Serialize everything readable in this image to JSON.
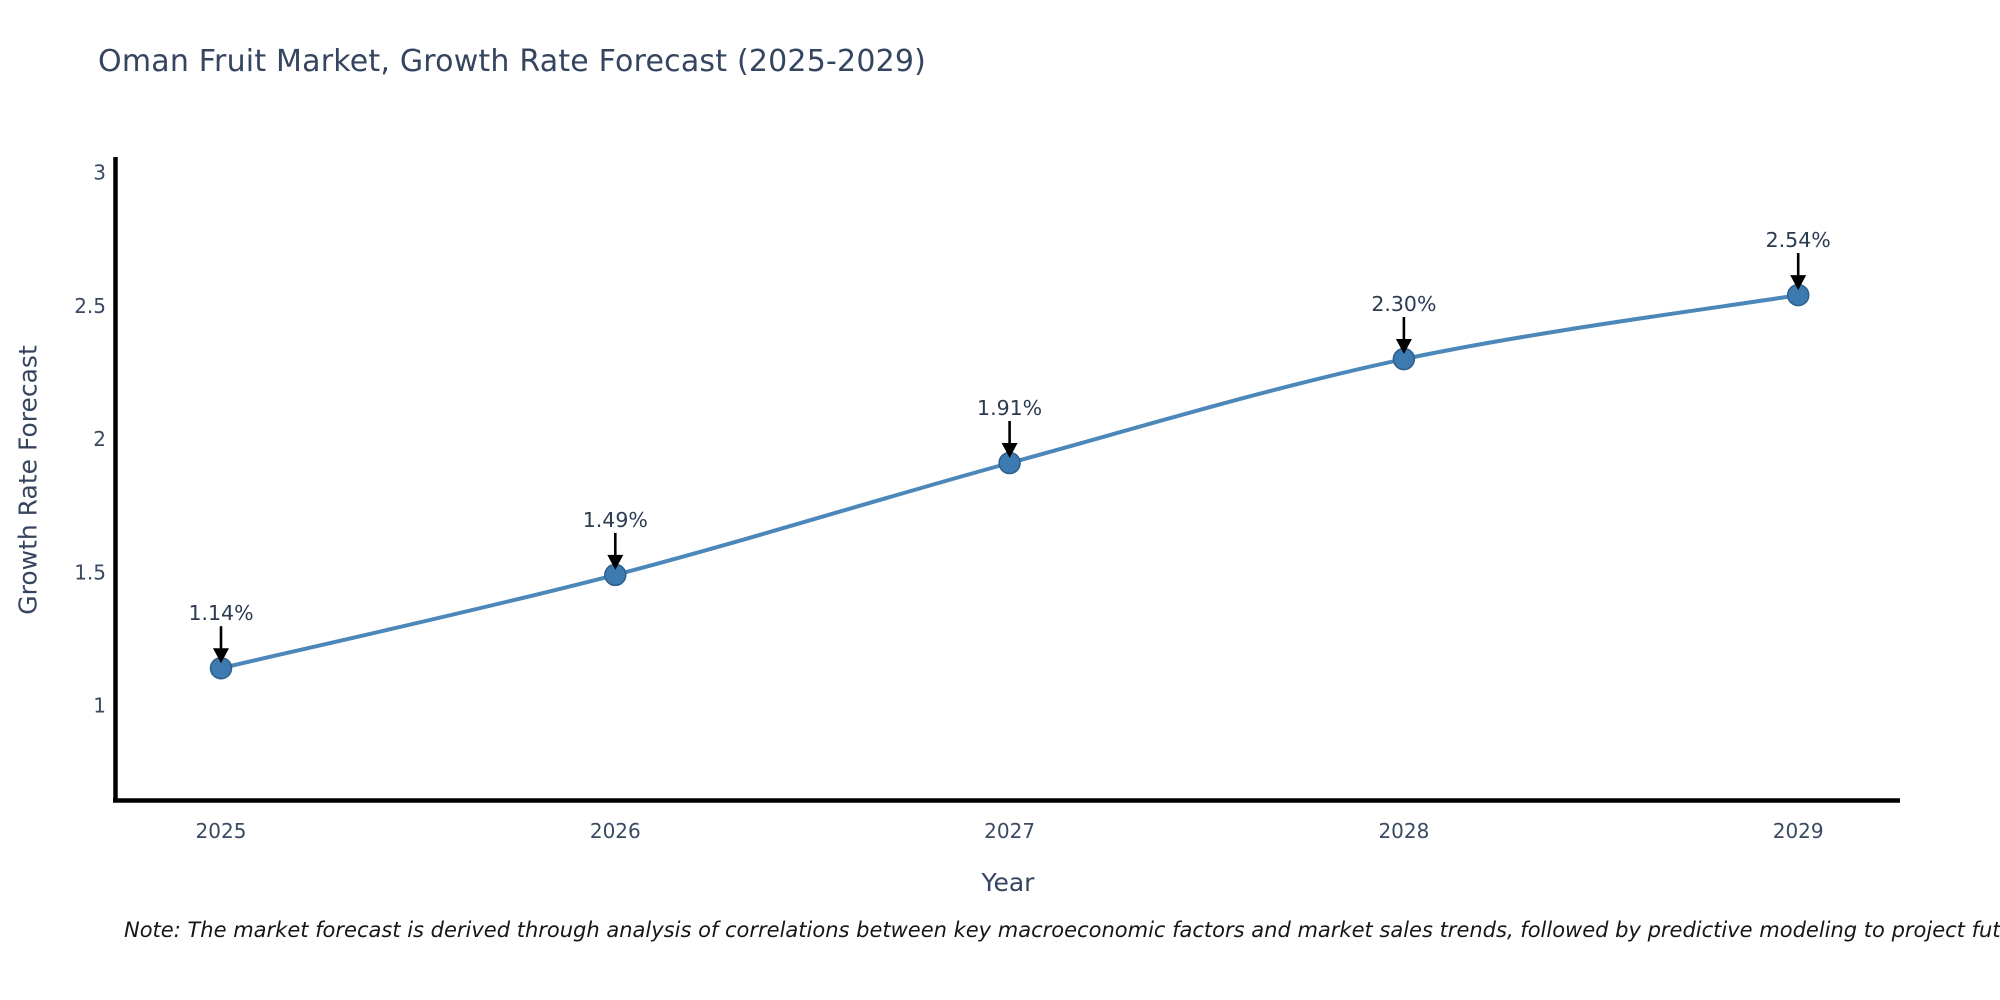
{
  "page": {
    "title_label": "Oman Fruit Market, Growth Rate Forecast (2025-2029)",
    "footnote": "Note: The market forecast is derived through analysis of correlations between key macroeconomic factors and market sales trends, followed by predictive modeling to project future sales"
  },
  "chart_data": {
    "type": "line",
    "title": "Oman Fruit Market, Growth Rate Forecast (2025-2029)",
    "xlabel": "Year",
    "ylabel": "Growth Rate Forecast",
    "x": [
      2025,
      2026,
      2027,
      2028,
      2029
    ],
    "values": [
      1.14,
      1.49,
      1.91,
      2.3,
      2.54
    ],
    "point_labels": [
      "1.14%",
      "1.49%",
      "1.91%",
      "2.30%",
      "2.54%"
    ],
    "yticks": [
      3,
      2.5,
      2,
      1.5,
      1
    ],
    "ylim": [
      0.64,
      3.06
    ],
    "xlim": [
      2024.73,
      2029.26
    ],
    "grid": false,
    "legend": "none",
    "annotation_style": "black-down-arrows",
    "colors": {
      "line": "#4c87b9",
      "marker_fill": "#3c7ab0",
      "marker_edge": "#2d5f8d",
      "axis_spine": "#000000",
      "arrow": "#000000",
      "tick_text": "#3a4a63",
      "annotation_text": "#2c3a52"
    }
  }
}
